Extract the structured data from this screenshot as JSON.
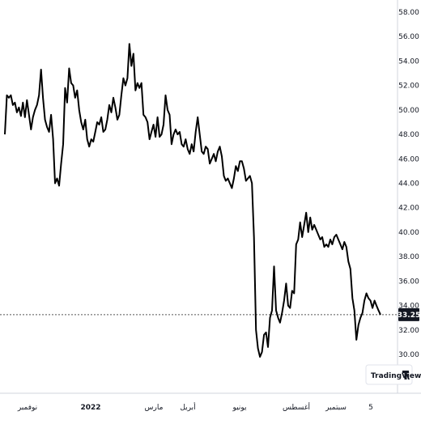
{
  "chart_data": {
    "type": "line",
    "y_axis_position": "right",
    "ylim": [
      28.5,
      58.5
    ],
    "y_ticks": [
      "58.00",
      "56.00",
      "54.00",
      "52.00",
      "50.00",
      "48.00",
      "46.00",
      "44.00",
      "42.00",
      "40.00",
      "38.00",
      "36.00",
      "34.00",
      "32.00",
      "30.00"
    ],
    "x_tick_labels": [
      "نوفمبر",
      "2022",
      "مارس",
      "أبريل",
      "يونيو",
      "أغسطس",
      "سبتمبر",
      "5"
    ],
    "last_value": 33.25,
    "last_value_label": "33.25",
    "line_color": "#000000",
    "series": [
      {
        "values": [
          48.0,
          51.2,
          51.0,
          51.2,
          50.4,
          50.6,
          49.8,
          50.2,
          49.5,
          50.6,
          49.4,
          50.8,
          49.6,
          48.4,
          49.4,
          50.0,
          50.4,
          51.2,
          53.3,
          51.0,
          49.2,
          48.6,
          48.2,
          49.6,
          47.6,
          44.0,
          44.4,
          43.8,
          45.6,
          47.2,
          51.8,
          50.6,
          53.4,
          52.2,
          52.0,
          51.0,
          51.6,
          50.0,
          49.0,
          48.4,
          49.2,
          47.6,
          47.0,
          47.6,
          47.4,
          48.2,
          49.0,
          48.8,
          49.4,
          48.2,
          48.4,
          49.2,
          50.4,
          49.8,
          51.0,
          50.2,
          49.2,
          49.6,
          51.2,
          52.6,
          52.0,
          52.6,
          55.4,
          53.6,
          54.6,
          51.6,
          52.2,
          51.8,
          52.2,
          49.6,
          49.4,
          49.0,
          47.6,
          48.2,
          48.8,
          47.8,
          49.4,
          47.8,
          48.0,
          48.8,
          51.2,
          50.0,
          49.6,
          47.2,
          48.0,
          48.4,
          48.0,
          48.2,
          47.2,
          47.0,
          47.6,
          46.8,
          46.4,
          47.2,
          46.6,
          48.2,
          49.4,
          48.0,
          46.6,
          46.4,
          47.0,
          46.8,
          45.6,
          46.0,
          46.4,
          45.8,
          46.6,
          47.0,
          46.2,
          44.6,
          44.2,
          44.4,
          44.0,
          43.6,
          44.4,
          45.4,
          45.0,
          45.8,
          45.8,
          45.2,
          44.2,
          44.4,
          44.6,
          44.0,
          39.6,
          32.0,
          30.5,
          29.8,
          30.2,
          31.6,
          31.8,
          30.6,
          33.0,
          33.6,
          37.2,
          33.6,
          33.0,
          32.6,
          33.4,
          34.4,
          35.8,
          34.0,
          33.8,
          35.2,
          35.0,
          39.0,
          39.4,
          40.8,
          39.6,
          40.6,
          41.6,
          40.0,
          41.2,
          40.2,
          40.6,
          40.2,
          39.8,
          39.4,
          39.6,
          38.8,
          39.0,
          38.8,
          39.4,
          39.0,
          39.6,
          39.8,
          39.4,
          39.0,
          38.6,
          39.2,
          38.8,
          37.6,
          37.0,
          34.6,
          33.6,
          31.2,
          32.4,
          33.0,
          33.4,
          34.4,
          35.0,
          34.6,
          34.4,
          33.8,
          34.4,
          34.0,
          33.6,
          33.25
        ]
      }
    ]
  },
  "branding": {
    "logo_text": "TradingView"
  }
}
